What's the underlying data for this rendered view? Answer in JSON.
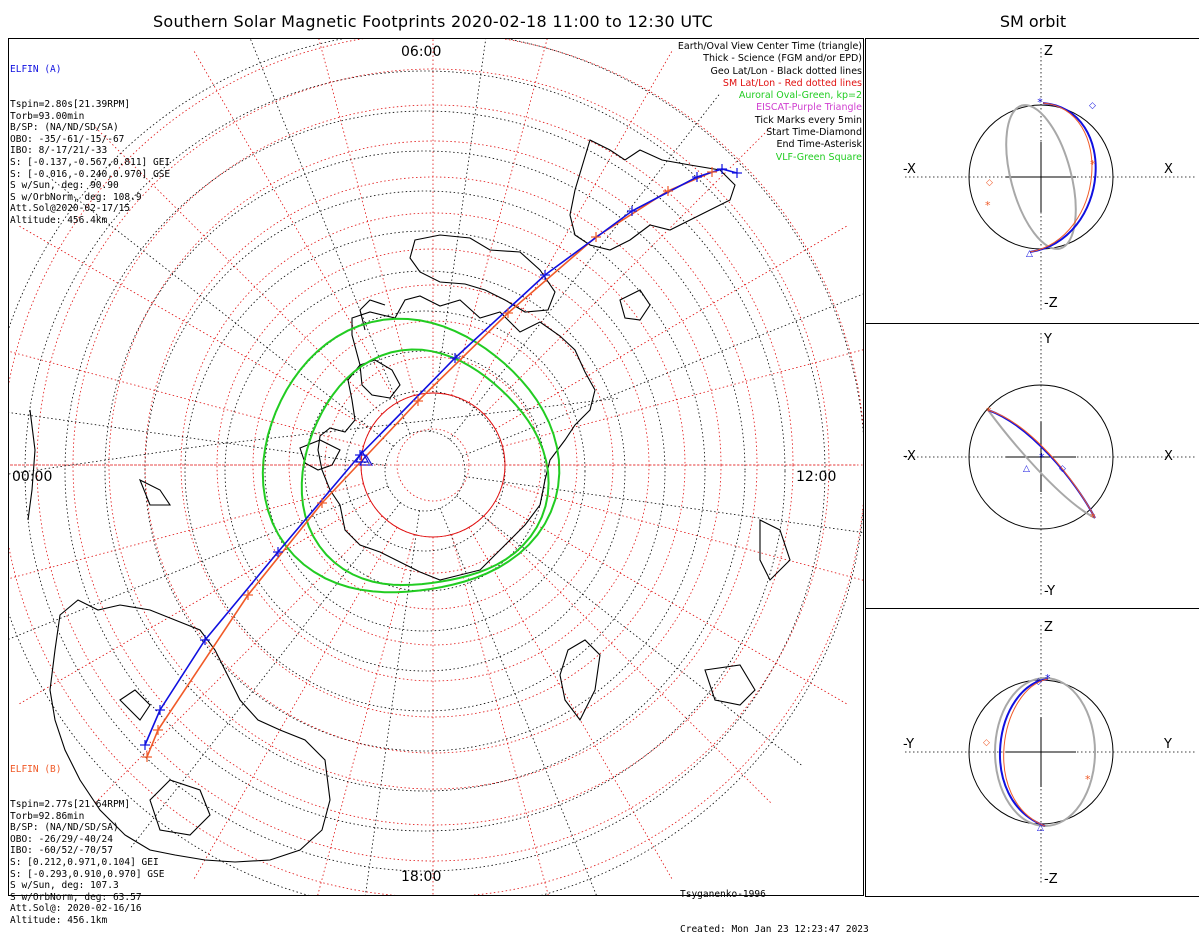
{
  "title": "Southern Solar Magnetic Footprints 2020-02-18 11:00 to 12:30 UTC",
  "orbit_title": "SM orbit",
  "colors": {
    "elfin_a": "#1010e0",
    "elfin_b": "#f05a28",
    "sm_grid": "#e01010",
    "aurora": "#22cc22",
    "orbit_gray": "#a8a8a8",
    "eiscat": "#d040d0",
    "vlf": "#22cc22"
  },
  "elfin_a": {
    "name": "ELFIN (A)",
    "lines": [
      "Tspin=2.80s[21.39RPM]",
      "Torb=93.00min",
      "B/SP: (NA/ND/SD/SA)",
      "OBO: -35/-61/-15/-67",
      "IBO: 8/-17/21/-33",
      "S: [-0.137,-0.567,0.811] GEI",
      "S: [-0.016,-0.240,0.970] GSE",
      "S w/Sun, deg: 90.90",
      "S w/OrbNorm, deg: 108.9",
      "Att.Sol@2020-02-17/15",
      "Altitude: 456.4km"
    ]
  },
  "elfin_b": {
    "name": "ELFIN (B)",
    "lines": [
      "Tspin=2.77s[21.64RPM]",
      "Torb=92.86min",
      "B/SP: (NA/ND/SD/SA)",
      "OBO: -26/29/-40/24",
      "IBO: -60/52/-70/57",
      "S: [0.212,0.971,0.104] GEI",
      "S: [-0.293,0.910,0.970] GSE",
      "S w/Sun, deg: 107.3",
      "S w/OrbNorm, deg: 63.57",
      "Att.Sol@: 2020-02-16/16",
      "Altitude: 456.1km"
    ]
  },
  "legend": [
    {
      "text": "Earth/Oval View Center Time (triangle)",
      "color": "#000000"
    },
    {
      "text": "Thick - Science (FGM and/or EPD)",
      "color": "#000000"
    },
    {
      "text": "Geo Lat/Lon - Black dotted lines",
      "color": "#000000"
    },
    {
      "text": "SM Lat/Lon - Red dotted lines",
      "color": "#e01010"
    },
    {
      "text": "Auroral Oval-Green, kp=2",
      "color": "#22cc22"
    },
    {
      "text": "EISCAT-Purple Triangle",
      "color": "#d040d0"
    },
    {
      "text": "Tick Marks every 5min",
      "color": "#000000"
    },
    {
      "text": "Start Time-Diamond",
      "color": "#000000"
    },
    {
      "text": "End Time-Asterisk",
      "color": "#000000"
    },
    {
      "text": "VLF-Green Square",
      "color": "#22cc22"
    }
  ],
  "hour_labels": {
    "top": "06:00",
    "left": "00:00",
    "right": "12:00",
    "bottom": "18:00"
  },
  "credits": {
    "model": "Tsyganenko-1996",
    "created": "Created: Mon Jan 23 12:23:47 2023"
  },
  "orbit_panels": [
    {
      "h_neg": "-X",
      "h_pos": "X",
      "v_pos": "Z",
      "v_neg": "-Z"
    },
    {
      "h_neg": "-X",
      "h_pos": "X",
      "v_pos": "Y",
      "v_neg": "-Y"
    },
    {
      "h_neg": "-Y",
      "h_pos": "Y",
      "v_pos": "Z",
      "v_neg": "-Z"
    }
  ]
}
